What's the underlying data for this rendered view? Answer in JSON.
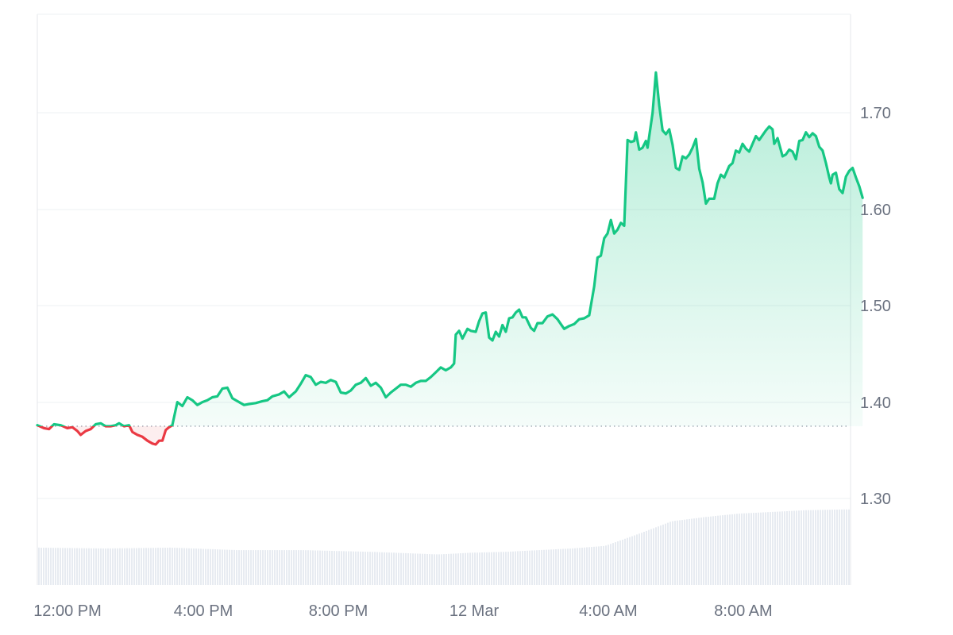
{
  "chart_data": {
    "type": "area",
    "title": "",
    "xlabel": "",
    "ylabel": "",
    "x_ticks": [
      "12:00 PM",
      "4:00 PM",
      "8:00 PM",
      "12 Mar",
      "4:00 AM",
      "8:00 AM"
    ],
    "y_ticks": [
      "1.30",
      "1.40",
      "1.50",
      "1.60",
      "1.70"
    ],
    "ylim": [
      1.21,
      1.805
    ],
    "xlim_hours": [
      0,
      24.15
    ],
    "baseline": 1.375,
    "grid": true,
    "y_axis_side": "right",
    "series": [
      {
        "values": [
          [
            0.0,
            1.376
          ],
          [
            0.2,
            1.373
          ],
          [
            0.35,
            1.372
          ],
          [
            0.5,
            1.377
          ],
          [
            0.7,
            1.376
          ],
          [
            0.9,
            1.373
          ],
          [
            1.05,
            1.374
          ],
          [
            1.2,
            1.37
          ],
          [
            1.3,
            1.366
          ],
          [
            1.45,
            1.37
          ],
          [
            1.6,
            1.372
          ],
          [
            1.75,
            1.377
          ],
          [
            1.9,
            1.378
          ],
          [
            2.05,
            1.375
          ],
          [
            2.2,
            1.375
          ],
          [
            2.35,
            1.376
          ],
          [
            2.45,
            1.378
          ],
          [
            2.6,
            1.375
          ],
          [
            2.75,
            1.376
          ],
          [
            2.85,
            1.369
          ],
          [
            3.0,
            1.366
          ],
          [
            3.15,
            1.364
          ],
          [
            3.3,
            1.36
          ],
          [
            3.45,
            1.357
          ],
          [
            3.55,
            1.356
          ],
          [
            3.65,
            1.36
          ],
          [
            3.75,
            1.36
          ],
          [
            3.85,
            1.371
          ],
          [
            3.95,
            1.374
          ],
          [
            4.05,
            1.376
          ],
          [
            4.2,
            1.4
          ],
          [
            4.35,
            1.396
          ],
          [
            4.5,
            1.405
          ],
          [
            4.65,
            1.402
          ],
          [
            4.8,
            1.397
          ],
          [
            4.95,
            1.4
          ],
          [
            5.1,
            1.402
          ],
          [
            5.25,
            1.405
          ],
          [
            5.4,
            1.406
          ],
          [
            5.55,
            1.414
          ],
          [
            5.7,
            1.415
          ],
          [
            5.85,
            1.404
          ],
          [
            6.0,
            1.401
          ],
          [
            6.2,
            1.397
          ],
          [
            6.35,
            1.398
          ],
          [
            6.55,
            1.399
          ],
          [
            6.75,
            1.401
          ],
          [
            6.9,
            1.402
          ],
          [
            7.05,
            1.406
          ],
          [
            7.25,
            1.408
          ],
          [
            7.4,
            1.411
          ],
          [
            7.55,
            1.405
          ],
          [
            7.75,
            1.411
          ],
          [
            7.9,
            1.419
          ],
          [
            8.05,
            1.428
          ],
          [
            8.2,
            1.426
          ],
          [
            8.35,
            1.418
          ],
          [
            8.5,
            1.421
          ],
          [
            8.65,
            1.42
          ],
          [
            8.8,
            1.423
          ],
          [
            8.95,
            1.421
          ],
          [
            9.1,
            1.41
          ],
          [
            9.25,
            1.409
          ],
          [
            9.4,
            1.412
          ],
          [
            9.55,
            1.418
          ],
          [
            9.7,
            1.42
          ],
          [
            9.85,
            1.425
          ],
          [
            10.0,
            1.417
          ],
          [
            10.15,
            1.42
          ],
          [
            10.3,
            1.415
          ],
          [
            10.45,
            1.405
          ],
          [
            10.6,
            1.41
          ],
          [
            10.75,
            1.414
          ],
          [
            10.9,
            1.418
          ],
          [
            11.05,
            1.418
          ],
          [
            11.2,
            1.416
          ],
          [
            11.35,
            1.42
          ],
          [
            11.5,
            1.422
          ],
          [
            11.65,
            1.422
          ],
          [
            11.8,
            1.426
          ],
          [
            11.95,
            1.431
          ],
          [
            12.1,
            1.436
          ],
          [
            12.25,
            1.433
          ],
          [
            12.4,
            1.436
          ],
          [
            12.5,
            1.44
          ],
          [
            12.55,
            1.47
          ],
          [
            12.65,
            1.474
          ],
          [
            12.75,
            1.466
          ],
          [
            12.9,
            1.476
          ],
          [
            13.0,
            1.474
          ],
          [
            13.15,
            1.473
          ],
          [
            13.25,
            1.484
          ],
          [
            13.35,
            1.492
          ],
          [
            13.45,
            1.493
          ],
          [
            13.55,
            1.467
          ],
          [
            13.65,
            1.464
          ],
          [
            13.75,
            1.473
          ],
          [
            13.85,
            1.468
          ],
          [
            13.95,
            1.48
          ],
          [
            14.05,
            1.473
          ],
          [
            14.15,
            1.487
          ],
          [
            14.25,
            1.488
          ],
          [
            14.35,
            1.493
          ],
          [
            14.45,
            1.496
          ],
          [
            14.55,
            1.488
          ],
          [
            14.65,
            1.488
          ],
          [
            14.8,
            1.477
          ],
          [
            14.9,
            1.474
          ],
          [
            15.0,
            1.482
          ],
          [
            15.15,
            1.482
          ],
          [
            15.3,
            1.489
          ],
          [
            15.45,
            1.491
          ],
          [
            15.6,
            1.486
          ],
          [
            15.7,
            1.481
          ],
          [
            15.8,
            1.476
          ],
          [
            15.95,
            1.479
          ],
          [
            16.1,
            1.481
          ],
          [
            16.25,
            1.486
          ],
          [
            16.4,
            1.487
          ],
          [
            16.55,
            1.49
          ],
          [
            16.7,
            1.52
          ],
          [
            16.8,
            1.55
          ],
          [
            16.9,
            1.552
          ],
          [
            17.0,
            1.57
          ],
          [
            17.1,
            1.575
          ],
          [
            17.2,
            1.589
          ],
          [
            17.3,
            1.575
          ],
          [
            17.4,
            1.579
          ],
          [
            17.5,
            1.586
          ],
          [
            17.6,
            1.583
          ],
          [
            17.7,
            1.672
          ],
          [
            17.8,
            1.67
          ],
          [
            17.9,
            1.671
          ],
          [
            17.95,
            1.68
          ],
          [
            18.05,
            1.662
          ],
          [
            18.15,
            1.664
          ],
          [
            18.25,
            1.671
          ],
          [
            18.3,
            1.664
          ],
          [
            18.45,
            1.7
          ],
          [
            18.55,
            1.742
          ],
          [
            18.65,
            1.708
          ],
          [
            18.75,
            1.682
          ],
          [
            18.85,
            1.678
          ],
          [
            18.95,
            1.683
          ],
          [
            19.05,
            1.667
          ],
          [
            19.15,
            1.643
          ],
          [
            19.25,
            1.641
          ],
          [
            19.35,
            1.655
          ],
          [
            19.45,
            1.653
          ],
          [
            19.55,
            1.657
          ],
          [
            19.65,
            1.664
          ],
          [
            19.75,
            1.673
          ],
          [
            19.85,
            1.642
          ],
          [
            19.95,
            1.628
          ],
          [
            20.05,
            1.606
          ],
          [
            20.15,
            1.611
          ],
          [
            20.3,
            1.611
          ],
          [
            20.4,
            1.627
          ],
          [
            20.5,
            1.636
          ],
          [
            20.6,
            1.633
          ],
          [
            20.75,
            1.645
          ],
          [
            20.85,
            1.648
          ],
          [
            20.95,
            1.661
          ],
          [
            21.05,
            1.659
          ],
          [
            21.15,
            1.668
          ],
          [
            21.25,
            1.663
          ],
          [
            21.35,
            1.66
          ],
          [
            21.45,
            1.668
          ],
          [
            21.55,
            1.676
          ],
          [
            21.65,
            1.672
          ],
          [
            21.75,
            1.677
          ],
          [
            21.85,
            1.682
          ],
          [
            21.95,
            1.686
          ],
          [
            22.05,
            1.683
          ],
          [
            22.1,
            1.668
          ],
          [
            22.2,
            1.674
          ],
          [
            22.35,
            1.655
          ],
          [
            22.45,
            1.657
          ],
          [
            22.55,
            1.662
          ],
          [
            22.65,
            1.66
          ],
          [
            22.75,
            1.652
          ],
          [
            22.85,
            1.671
          ],
          [
            22.95,
            1.672
          ],
          [
            23.05,
            1.68
          ],
          [
            23.15,
            1.675
          ],
          [
            23.25,
            1.679
          ],
          [
            23.35,
            1.676
          ],
          [
            23.45,
            1.665
          ],
          [
            23.55,
            1.661
          ],
          [
            23.65,
            1.648
          ],
          [
            23.75,
            1.633
          ],
          [
            23.8,
            1.627
          ],
          [
            23.85,
            1.636
          ],
          [
            23.95,
            1.638
          ],
          [
            24.05,
            1.621
          ],
          [
            24.15,
            1.617
          ],
          [
            24.25,
            1.634
          ],
          [
            24.35,
            1.64
          ],
          [
            24.45,
            1.643
          ],
          [
            24.55,
            1.633
          ],
          [
            24.65,
            1.624
          ],
          [
            24.75,
            1.612
          ]
        ]
      }
    ],
    "volume": [
      [
        0,
        0.44
      ],
      [
        2,
        0.43
      ],
      [
        4,
        0.44
      ],
      [
        6,
        0.41
      ],
      [
        8,
        0.41
      ],
      [
        10,
        0.39
      ],
      [
        12,
        0.36
      ],
      [
        13,
        0.38
      ],
      [
        14,
        0.39
      ],
      [
        16,
        0.43
      ],
      [
        17,
        0.46
      ],
      [
        18,
        0.6
      ],
      [
        19,
        0.75
      ],
      [
        20,
        0.8
      ],
      [
        21,
        0.84
      ],
      [
        22,
        0.86
      ],
      [
        23,
        0.88
      ],
      [
        24.2,
        0.89
      ]
    ],
    "colors": {
      "up_line": "#16c784",
      "down_line": "#ea3943",
      "volume": "#e7ebf1",
      "grid": "#eef0f3",
      "axis": "#e5e7eb",
      "label": "#6b7280",
      "baseline": "#9ca3af"
    }
  }
}
